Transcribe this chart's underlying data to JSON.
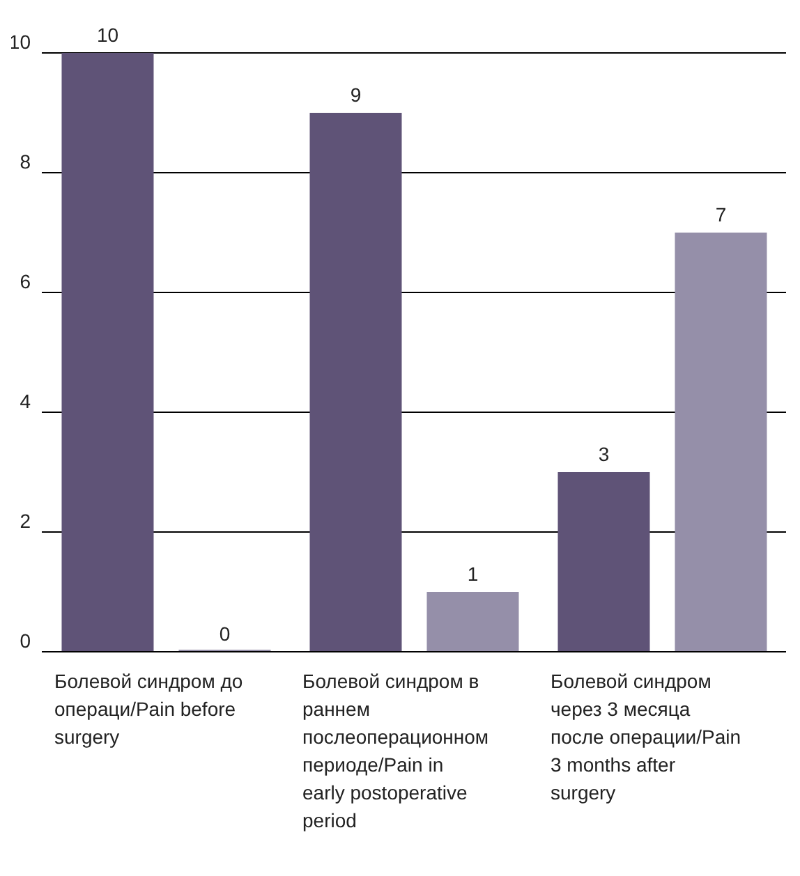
{
  "chart_data": {
    "type": "bar",
    "categories": [
      "Болевой синдром до операци/Pain before surgery",
      "Болевой синдром в раннем послеоперационном периоде/Pain in early postoperative period",
      "Болевой синдром через 3 месяца после операции/Pain 3 months after surgery"
    ],
    "series": [
      {
        "color": "#5f5377",
        "values": [
          10,
          9,
          3
        ]
      },
      {
        "color": "#958fa9",
        "values": [
          0,
          1,
          7
        ]
      }
    ],
    "ylim": [
      0,
      10
    ],
    "yticks": [
      0,
      2,
      4,
      6,
      8,
      10
    ],
    "grid": "y",
    "data_labels": true,
    "legend": false
  }
}
